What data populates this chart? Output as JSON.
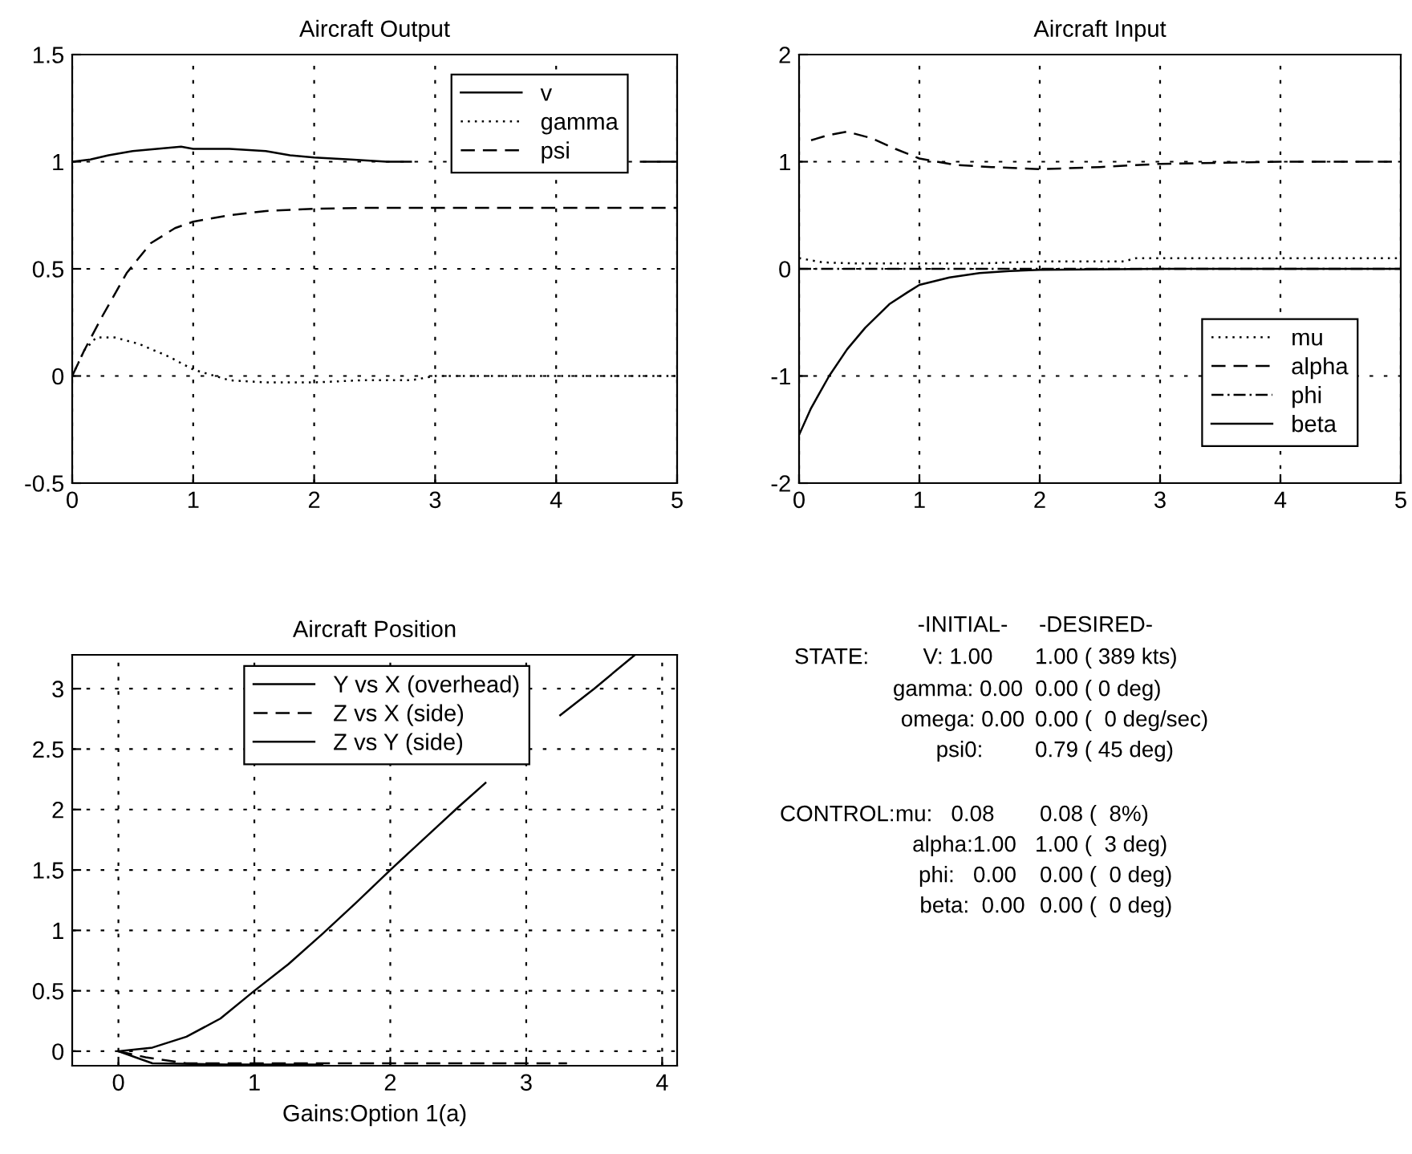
{
  "chart_data": [
    {
      "type": "line",
      "title": "Aircraft Output",
      "xlim": [
        0,
        5
      ],
      "ylim": [
        -0.5,
        1.5
      ],
      "xticks": [
        0,
        1,
        2,
        3,
        4,
        5
      ],
      "yticks": [
        -0.5,
        0,
        0.5,
        1,
        1.5
      ],
      "grid": true,
      "legend": "top right",
      "series": [
        {
          "name": "v",
          "color": "#000000",
          "line_style": "solid",
          "x": [
            0,
            0.15,
            0.3,
            0.5,
            0.7,
            0.9,
            1.0,
            1.3,
            1.6,
            1.8,
            2.0,
            2.3,
            2.6,
            2.8,
            3.0,
            4.0,
            4.7,
            5.0
          ],
          "values": [
            1.0,
            1.01,
            1.03,
            1.05,
            1.06,
            1.07,
            1.06,
            1.06,
            1.05,
            1.03,
            1.02,
            1.01,
            1.0,
            1.0,
            null,
            null,
            1.0,
            1.0
          ]
        },
        {
          "name": "gamma",
          "color": "#000000",
          "line_style": "dotted",
          "x": [
            0,
            0.1,
            0.2,
            0.35,
            0.55,
            0.8,
            1.0,
            1.3,
            1.6,
            2.0,
            2.4,
            2.8,
            3.0,
            3.5,
            4.0,
            5.0
          ],
          "values": [
            0,
            0.12,
            0.18,
            0.18,
            0.15,
            0.09,
            0.03,
            -0.02,
            -0.03,
            -0.03,
            -0.02,
            -0.02,
            0.0,
            0.0,
            0.0,
            0.0
          ]
        },
        {
          "name": "psi",
          "color": "#000000",
          "line_style": "dashed",
          "x": [
            0,
            0.1,
            0.25,
            0.45,
            0.65,
            0.85,
            1.0,
            1.3,
            1.6,
            2.0,
            2.5,
            3.0,
            4.0,
            5.0
          ],
          "values": [
            0,
            0.12,
            0.28,
            0.48,
            0.62,
            0.69,
            0.72,
            0.75,
            0.77,
            0.78,
            0.785,
            0.785,
            0.785,
            0.785
          ]
        }
      ]
    },
    {
      "type": "line",
      "title": "Aircraft Input",
      "xlim": [
        0,
        5
      ],
      "ylim": [
        -2,
        2
      ],
      "xticks": [
        0,
        1,
        2,
        3,
        4,
        5
      ],
      "yticks": [
        -2,
        -1,
        0,
        1,
        2
      ],
      "grid": true,
      "legend": "bottom right",
      "series": [
        {
          "name": "mu",
          "color": "#000000",
          "line_style": "dotted",
          "x": [
            0,
            0.2,
            0.5,
            1.0,
            1.5,
            2.0,
            2.7,
            2.8,
            3.5,
            5.0
          ],
          "values": [
            0.1,
            0.06,
            0.05,
            0.05,
            0.05,
            0.07,
            0.07,
            0.1,
            0.1,
            0.1
          ]
        },
        {
          "name": "alpha",
          "color": "#000000",
          "line_style": "dashed",
          "x": [
            0.1,
            0.25,
            0.4,
            0.6,
            0.8,
            1.0,
            1.3,
            1.6,
            2.0,
            2.5,
            3.0,
            3.5,
            4.0,
            5.0
          ],
          "values": [
            1.2,
            1.25,
            1.28,
            1.22,
            1.12,
            1.03,
            0.97,
            0.95,
            0.93,
            0.95,
            0.98,
            0.99,
            1.0,
            1.0
          ]
        },
        {
          "name": "phi",
          "color": "#000000",
          "line_style": "dashdot",
          "x": [
            0,
            1,
            2,
            3,
            4,
            5
          ],
          "values": [
            0,
            0,
            0,
            0,
            0,
            0
          ]
        },
        {
          "name": "beta",
          "color": "#000000",
          "line_style": "solid",
          "x": [
            0,
            0.1,
            0.25,
            0.4,
            0.55,
            0.75,
            0.9,
            1.0,
            1.25,
            1.5,
            1.75,
            2.0,
            3.0,
            5.0
          ],
          "values": [
            -1.55,
            -1.3,
            -1.0,
            -0.75,
            -0.55,
            -0.33,
            -0.22,
            -0.15,
            -0.08,
            -0.04,
            -0.02,
            -0.01,
            0.0,
            0.0
          ]
        }
      ]
    },
    {
      "type": "line",
      "title": "Aircraft Position",
      "xlabel": "Gains:Option 1(a)",
      "xlim": [
        -0.34,
        4.11
      ],
      "ylim": [
        -0.12,
        3.28
      ],
      "xticks": [
        0,
        1,
        2,
        3,
        4
      ],
      "yticks": [
        0,
        0.5,
        1,
        1.5,
        2,
        2.5,
        3
      ],
      "grid": true,
      "legend": "top",
      "series": [
        {
          "name": "Y vs X (overhead)",
          "color": "#000000",
          "line_style": "solid",
          "x": [
            0,
            0.25,
            0.5,
            0.75,
            1.0,
            1.25,
            1.5,
            1.75,
            2.0,
            2.5,
            2.7,
            3.0,
            3.25,
            3.5,
            3.8
          ],
          "values": [
            0,
            0.03,
            0.12,
            0.27,
            0.5,
            0.72,
            0.97,
            1.23,
            1.5,
            2.02,
            2.22,
            null,
            2.78,
            3.0,
            3.28
          ]
        },
        {
          "name": "Z vs X (side)",
          "color": "#000000",
          "line_style": "dashed",
          "x": [
            0,
            0.2,
            0.5,
            1.0,
            2.0,
            3.3
          ],
          "values": [
            0,
            -0.05,
            -0.1,
            -0.1,
            -0.1,
            -0.1
          ]
        },
        {
          "name": "Z vs Y (side)",
          "color": "#000000",
          "line_style": "solid",
          "x": [
            0,
            0.25,
            0.8,
            1.5
          ],
          "values": [
            0,
            -0.1,
            -0.11,
            -0.11
          ]
        }
      ]
    },
    {
      "type": "other",
      "annotations": [
        "-INITIAL-",
        "-DESIRED-",
        "STATE:",
        "V: 1.00",
        "1.00 ( 389 kts)",
        "gamma: 0.00",
        "0.00 ( 0 deg)",
        "omega: 0.00",
        "0.00 (  0 deg/sec)",
        "psi0:",
        "0.79 ( 45 deg)",
        "CONTROL:",
        "mu:   0.08",
        "0.08 (  8%)",
        "alpha:1.00",
        "1.00 (  3 deg)",
        "phi:   0.00",
        "0.00 (  0 deg)",
        "beta:  0.00",
        "0.00 (  0 deg)"
      ]
    }
  ]
}
